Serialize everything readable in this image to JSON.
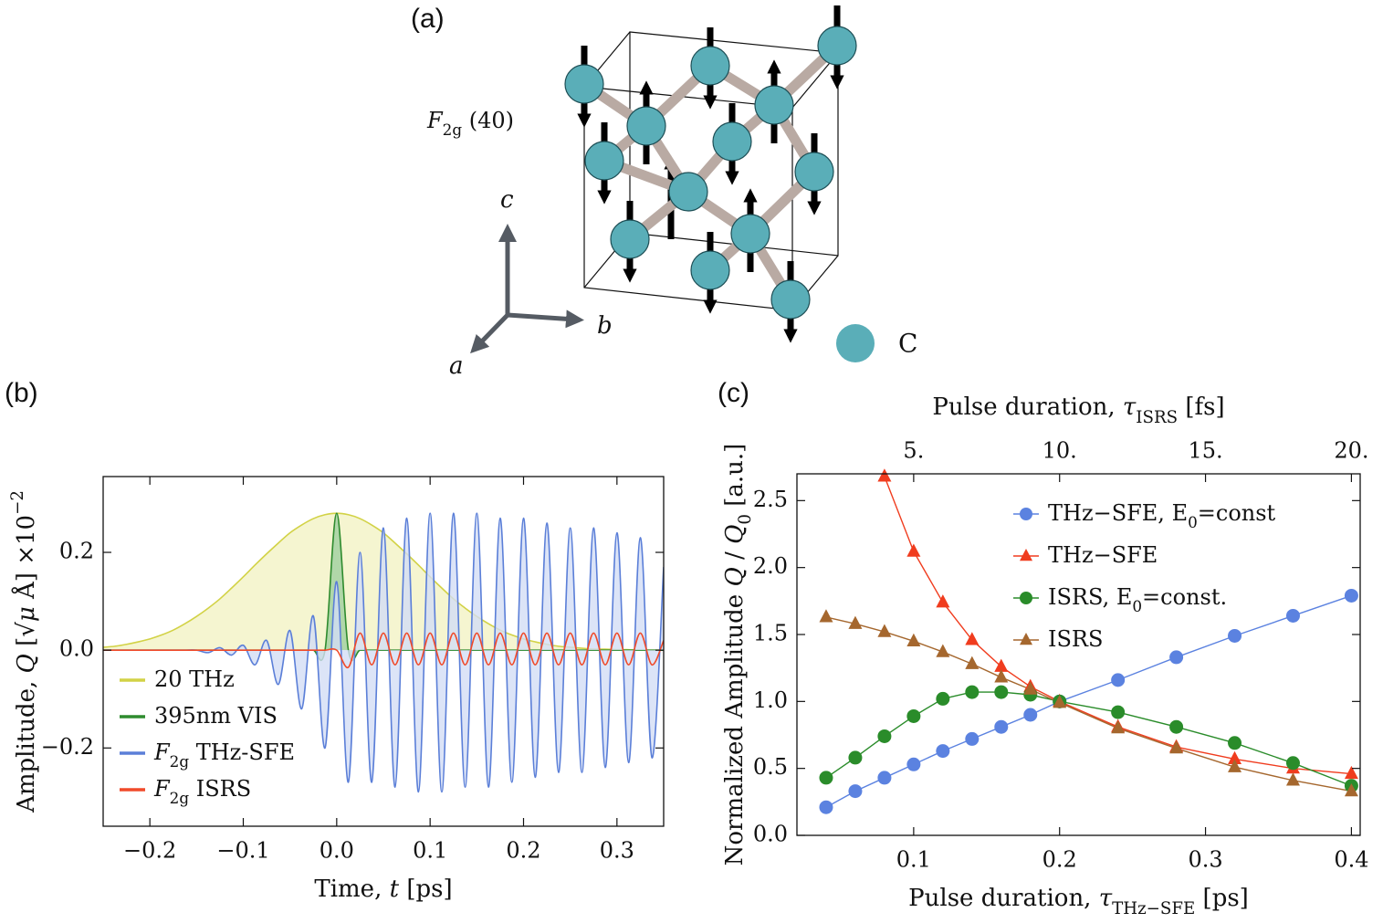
{
  "panels": {
    "a": {
      "label": "(a)",
      "mode": [
        "F",
        "2g",
        " (40)"
      ],
      "axes": {
        "a": "a",
        "b": "b",
        "c": "c"
      },
      "atom": "C"
    },
    "b": {
      "label": "(b)"
    },
    "c": {
      "label": "(c)"
    }
  },
  "chart_data": [
    {
      "type": "line",
      "xlabel": [
        "Time,  ",
        "t",
        "  [ps]"
      ],
      "ylabel": [
        "Amplitude,  ",
        "Q",
        "  [√",
        "μ",
        " Å] ×10",
        "−2"
      ],
      "x": [
        -0.25,
        -0.2375,
        -0.225,
        -0.2125,
        -0.2,
        -0.1875,
        -0.175,
        -0.1625,
        -0.15,
        -0.1375,
        -0.125,
        -0.1125,
        -0.1,
        -0.0875,
        -0.075,
        -0.0625,
        -0.05,
        -0.0375,
        -0.025,
        -0.0125,
        0,
        0.0125,
        0.025,
        0.0375,
        0.05,
        0.0625,
        0.075,
        0.0875,
        0.1,
        0.1125,
        0.125,
        0.1375,
        0.15,
        0.1625,
        0.175,
        0.1875,
        0.2,
        0.2125,
        0.225,
        0.2375,
        0.25,
        0.2625,
        0.275,
        0.2875,
        0.3,
        0.3125,
        0.325,
        0.3375,
        0.35
      ],
      "series": [
        {
          "name": [
            "20 THz"
          ],
          "color": "#d2d246",
          "fill": "#f3f3c4",
          "values": [
            0.006,
            0.008,
            0.012,
            0.017,
            0.023,
            0.031,
            0.041,
            0.054,
            0.069,
            0.086,
            0.105,
            0.127,
            0.15,
            0.174,
            0.197,
            0.219,
            0.24,
            0.256,
            0.269,
            0.277,
            0.28,
            0.277,
            0.269,
            0.256,
            0.24,
            0.219,
            0.197,
            0.174,
            0.15,
            0.127,
            0.105,
            0.086,
            0.069,
            0.054,
            0.041,
            0.031,
            0.023,
            0.017,
            0.012,
            0.008,
            0.006,
            0.004,
            0.002,
            0.002,
            0.001,
            0.001,
            0,
            0,
            0
          ]
        },
        {
          "name": [
            "395nm VIS"
          ],
          "color": "#2e8b2e",
          "fill": "#9fd09f",
          "values": [
            0,
            0,
            0,
            0,
            0,
            0,
            0,
            0,
            0,
            0,
            0,
            0,
            0,
            0,
            0,
            0,
            0,
            0,
            0,
            0,
            0.28,
            0,
            0,
            0,
            0,
            0,
            0,
            0,
            0,
            0,
            0,
            0,
            0,
            0,
            0,
            0,
            0,
            0,
            0,
            0,
            0,
            0,
            0,
            0,
            0,
            0,
            0,
            0,
            0
          ]
        },
        {
          "name": [
            "F",
            "2g",
            " THz-SFE"
          ],
          "color": "#5b7fd8",
          "fill": "#d3ddf5",
          "values": [
            0,
            0,
            0,
            0,
            0,
            0,
            0,
            0,
            0,
            -0.005,
            0.005,
            -0.01,
            0.01,
            -0.03,
            0.02,
            -0.07,
            0.04,
            -0.12,
            0.07,
            -0.2,
            0.14,
            -0.27,
            0.2,
            -0.27,
            0.25,
            -0.28,
            0.27,
            -0.29,
            0.28,
            -0.29,
            0.28,
            -0.28,
            0.28,
            -0.28,
            0.27,
            -0.27,
            0.27,
            -0.26,
            0.26,
            -0.25,
            0.25,
            -0.25,
            0.25,
            -0.24,
            0.24,
            -0.23,
            0.23,
            -0.22,
            0.17
          ]
        },
        {
          "name": [
            "F",
            "2g",
            " ISRS"
          ],
          "color": "#f04a2a",
          "values": [
            0,
            0,
            0,
            0,
            0,
            0,
            0,
            0,
            0,
            0,
            0,
            0,
            0,
            0,
            0,
            0,
            0,
            0,
            0,
            0,
            0,
            -0.035,
            0.035,
            -0.03,
            0.035,
            -0.03,
            0.035,
            -0.03,
            0.035,
            -0.03,
            0.035,
            -0.03,
            0.035,
            -0.03,
            0.035,
            -0.03,
            0.035,
            -0.03,
            0.035,
            -0.03,
            0.035,
            -0.03,
            0.035,
            -0.03,
            0.035,
            -0.03,
            0.035,
            -0.03,
            0.02
          ]
        }
      ],
      "xlim": [
        -0.25,
        0.35
      ],
      "ylim": [
        -0.36,
        0.355
      ],
      "xticks": [
        {
          "value": -0.2,
          "label": "−0.2"
        },
        {
          "value": -0.1,
          "label": "−0.1"
        },
        {
          "value": 0,
          "label": "0.0"
        },
        0.1,
        0.2,
        0.3
      ],
      "yticks": [
        {
          "value": -0.2,
          "label": "−0.2"
        },
        {
          "value": 0,
          "label": "0.0"
        },
        0.2
      ],
      "legend": "lower left"
    },
    {
      "type": "line",
      "xlabel": [
        "Pulse duration,  ",
        "τ",
        "THz−SFE",
        "  [ps]"
      ],
      "x2label": [
        "Pulse duration,  ",
        "τ",
        "ISRS",
        "  [fs]"
      ],
      "ylabel": [
        "Normalized Amplitude ",
        "Q",
        " / ",
        "Q",
        "0",
        "  [a.u.]"
      ],
      "x": [
        0.04,
        0.06,
        0.08,
        0.1,
        0.12,
        0.14,
        0.16,
        0.18,
        0.2,
        0.24,
        0.28,
        0.32,
        0.36,
        0.4
      ],
      "series": [
        {
          "name": [
            "THz−SFE, E",
            "0",
            "=const"
          ],
          "color": "#5b82e0",
          "marker": "o",
          "values": [
            0.21,
            0.33,
            0.43,
            0.53,
            0.63,
            0.72,
            0.81,
            0.9,
            1.0,
            1.16,
            1.33,
            1.49,
            1.64,
            1.79
          ]
        },
        {
          "name": [
            "THz−SFE"
          ],
          "color": "#f03c1e",
          "marker": "^",
          "values": [
            null,
            null,
            2.68,
            2.12,
            1.74,
            1.46,
            1.26,
            1.11,
            1.0,
            0.81,
            0.66,
            0.57,
            0.5,
            0.46
          ]
        },
        {
          "name": [
            "ISRS, E",
            "0",
            "=const."
          ],
          "color": "#2a8c2a",
          "marker": "o",
          "values": [
            0.43,
            0.58,
            0.74,
            0.89,
            1.02,
            1.07,
            1.07,
            1.05,
            1.0,
            0.92,
            0.81,
            0.69,
            0.54,
            0.37
          ]
        },
        {
          "name": [
            "ISRS"
          ],
          "color": "#a5672e",
          "marker": "^",
          "values": [
            1.63,
            1.58,
            1.52,
            1.45,
            1.37,
            1.28,
            1.18,
            1.09,
            0.99,
            0.8,
            0.65,
            0.51,
            0.41,
            0.33
          ]
        }
      ],
      "xlim": [
        0.02,
        0.406
      ],
      "ylim": [
        0,
        2.7
      ],
      "x2lim": [
        1.0,
        20.3
      ],
      "xticks": [
        0.1,
        0.2,
        0.3,
        0.4
      ],
      "x2ticks": [
        {
          "value": 5,
          "label": "5."
        },
        {
          "value": 10,
          "label": "10."
        },
        {
          "value": 15,
          "label": "15."
        },
        {
          "value": 20,
          "label": "20."
        }
      ],
      "yticks": [
        {
          "value": 0,
          "label": "0.0"
        },
        0.5,
        {
          "value": 1,
          "label": "1.0"
        },
        1.5,
        {
          "value": 2,
          "label": "2.0"
        },
        2.5
      ],
      "legend": "upper right"
    }
  ]
}
